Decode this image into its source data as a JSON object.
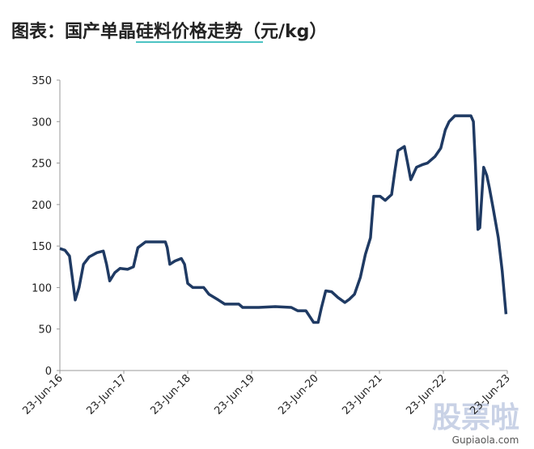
{
  "chart_data": {
    "type": "line",
    "title": "图表：国产单晶硅料价格走势（元/kg）",
    "x": [
      2016.48,
      2016.56,
      2016.63,
      2016.72,
      2016.78,
      2016.85,
      2016.94,
      2017.06,
      2017.16,
      2017.21,
      2017.26,
      2017.34,
      2017.42,
      2017.54,
      2017.63,
      2017.7,
      2017.82,
      2018.13,
      2018.16,
      2018.2,
      2018.28,
      2018.38,
      2018.43,
      2018.48,
      2018.56,
      2018.73,
      2018.81,
      2018.96,
      2019.06,
      2019.28,
      2019.34,
      2019.59,
      2019.85,
      2020.1,
      2020.2,
      2020.33,
      2020.39,
      2020.45,
      2020.52,
      2020.57,
      2020.64,
      2020.73,
      2020.83,
      2020.94,
      2021.01,
      2021.09,
      2021.18,
      2021.26,
      2021.34,
      2021.39,
      2021.49,
      2021.57,
      2021.67,
      2021.72,
      2021.77,
      2021.87,
      2021.92,
      2021.97,
      2022.06,
      2022.15,
      2022.23,
      2022.35,
      2022.44,
      2022.51,
      2022.57,
      2022.66,
      2022.91,
      2022.95,
      2022.98,
      2023.02,
      2023.05,
      2023.11,
      2023.16,
      2023.2,
      2023.26,
      2023.34,
      2023.4,
      2023.46
    ],
    "series": [
      {
        "name": "单晶硅料价格",
        "color": "#1f3a63",
        "values": [
          147,
          145,
          138,
          85,
          100,
          128,
          137,
          142,
          144,
          128,
          108,
          118,
          123,
          122,
          125,
          148,
          155,
          155,
          148,
          128,
          132,
          135,
          128,
          105,
          100,
          100,
          92,
          85,
          80,
          80,
          76,
          76,
          77,
          76,
          72,
          72,
          65,
          58,
          58,
          75,
          96,
          95,
          88,
          82,
          86,
          92,
          112,
          140,
          160,
          210,
          210,
          205,
          212,
          240,
          265,
          270,
          250,
          230,
          245,
          248,
          250,
          258,
          268,
          290,
          300,
          307,
          307,
          300,
          250,
          170,
          172,
          245,
          235,
          220,
          195,
          160,
          120,
          68
        ]
      }
    ],
    "xlim": [
      2016.48,
      2023.48
    ],
    "xticks": [
      {
        "value": 2016.48,
        "label": "23-Jun-16"
      },
      {
        "value": 2017.48,
        "label": "23-Jun-17"
      },
      {
        "value": 2018.48,
        "label": "23-Jun-18"
      },
      {
        "value": 2019.48,
        "label": "23-Jun-19"
      },
      {
        "value": 2020.48,
        "label": "23-Jun-20"
      },
      {
        "value": 2021.48,
        "label": "23-Jun-21"
      },
      {
        "value": 2022.48,
        "label": "23-Jun-22"
      },
      {
        "value": 2023.48,
        "label": "23-Jun-23"
      }
    ],
    "ylim": [
      0,
      350
    ],
    "yticks": [
      0,
      50,
      100,
      150,
      200,
      250,
      300,
      350
    ],
    "grid": false,
    "watermark": "股票啦",
    "watermark_url": "Gupiaola.com"
  }
}
